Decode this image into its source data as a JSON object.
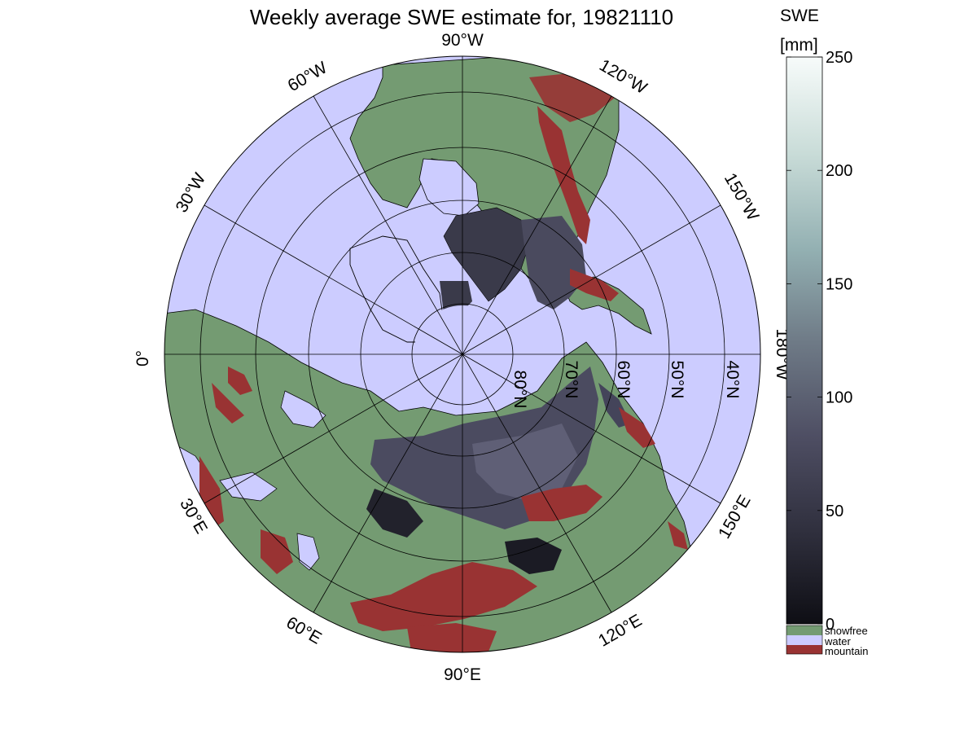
{
  "title": "Weekly average SWE estimate for, 19821110",
  "colorbar": {
    "label_top": "SWE",
    "label_unit": "[mm]",
    "ticks": [
      "0",
      "50",
      "100",
      "150",
      "200",
      "250"
    ],
    "tick_values": [
      0,
      50,
      100,
      150,
      200,
      250
    ],
    "range": [
      0,
      250
    ],
    "gradient_colors": [
      "#0e0e14",
      "#2f2f3d",
      "#4e4e63",
      "#6f7b87",
      "#93b0b2",
      "#c9dcd8",
      "#f7fbfa"
    ],
    "categories": [
      {
        "label": "snowfree",
        "color": "#749b72"
      },
      {
        "label": "water",
        "color": "#ccccff"
      },
      {
        "label": "mountain",
        "color": "#993333"
      }
    ]
  },
  "map": {
    "projection": "north-polar-stereographic",
    "colors": {
      "water": "#ccccff",
      "land": "#749b72",
      "snow_dark": "#3a3a4a",
      "snow_mid": "#5a5a70",
      "mountain": "#993333",
      "ice": "#ccccff"
    },
    "longitude_labels": [
      "90°W",
      "60°W",
      "30°W",
      "0°",
      "30°E",
      "60°E",
      "90°E",
      "120°E",
      "150°E",
      "180°W",
      "150°W",
      "120°W"
    ],
    "latitude_labels": [
      "80°N",
      "70°N",
      "60°N",
      "50°N",
      "40°N"
    ]
  }
}
